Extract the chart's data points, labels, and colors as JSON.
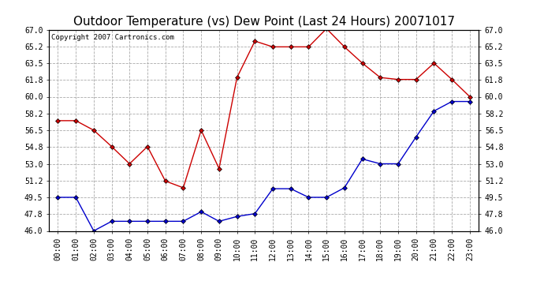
{
  "title": "Outdoor Temperature (vs) Dew Point (Last 24 Hours) 20071017",
  "copyright_text": "Copyright 2007 Cartronics.com",
  "hours": [
    "00:00",
    "01:00",
    "02:00",
    "03:00",
    "04:00",
    "05:00",
    "06:00",
    "07:00",
    "08:00",
    "09:00",
    "10:00",
    "11:00",
    "12:00",
    "13:00",
    "14:00",
    "15:00",
    "16:00",
    "17:00",
    "18:00",
    "19:00",
    "20:00",
    "21:00",
    "22:00",
    "23:00"
  ],
  "temp": [
    57.5,
    57.5,
    56.5,
    54.8,
    53.0,
    54.8,
    51.2,
    50.5,
    56.5,
    52.5,
    62.0,
    65.8,
    65.2,
    65.2,
    65.2,
    67.1,
    65.2,
    63.5,
    62.0,
    61.8,
    61.8,
    63.5,
    61.8,
    60.0
  ],
  "dew": [
    49.5,
    49.5,
    46.0,
    47.0,
    47.0,
    47.0,
    47.0,
    47.0,
    48.0,
    47.0,
    47.5,
    47.8,
    50.4,
    50.4,
    49.5,
    49.5,
    50.5,
    53.5,
    53.0,
    53.0,
    55.8,
    58.5,
    59.5,
    59.5
  ],
  "temp_color": "#cc0000",
  "dew_color": "#0000cc",
  "bg_color": "#ffffff",
  "plot_bg_color": "#ffffff",
  "grid_color": "#aaaaaa",
  "ylim_min": 46.0,
  "ylim_max": 67.0,
  "yticks": [
    46.0,
    47.8,
    49.5,
    51.2,
    53.0,
    54.8,
    56.5,
    58.2,
    60.0,
    61.8,
    63.5,
    65.2,
    67.0
  ],
  "title_fontsize": 11,
  "copyright_fontsize": 6.5,
  "tick_fontsize": 7
}
